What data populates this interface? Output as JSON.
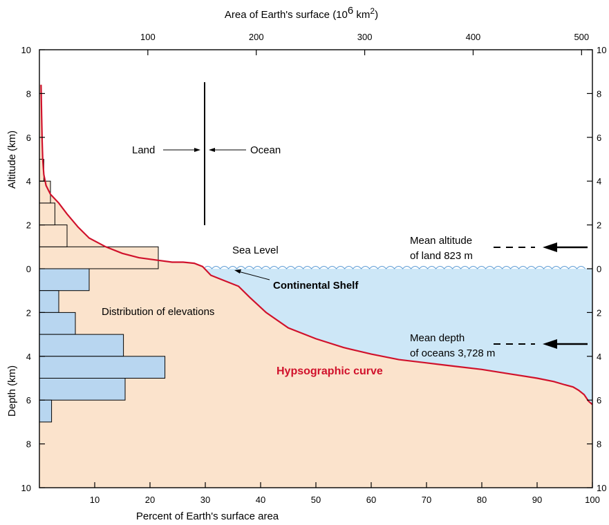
{
  "colors": {
    "land_fill": "#FBE3CC",
    "ocean_fill": "#CDE7F7",
    "land_bar": "#FBE3CC",
    "ocean_bar": "#B8D6F0",
    "curve": "#D0112B",
    "waves": "#5B9BD5"
  },
  "chart_data": {
    "type": "area",
    "xlabel": "Percent of Earth's surface area",
    "x2label_prefix": "Area of Earth's surface (10",
    "x2label_exp": "6",
    "x2label_unit": " km",
    "x2label_unit_exp": "2",
    "x2label_suffix": ")",
    "ylabel_upper": "Altitude (km)",
    "ylabel_lower": "Depth (km)",
    "xlim": [
      0,
      100
    ],
    "ylim": [
      -10,
      10
    ],
    "x_ticks": [
      10,
      20,
      30,
      40,
      50,
      60,
      70,
      80,
      90,
      100
    ],
    "x2_ticks": [
      100,
      200,
      300,
      400,
      500
    ],
    "x2_ticks_value_per_percent_unit": 5.1,
    "y_ticks": [
      {
        "value": 10,
        "label": "10"
      },
      {
        "value": 8,
        "label": "8"
      },
      {
        "value": 6,
        "label": "6"
      },
      {
        "value": 4,
        "label": "4"
      },
      {
        "value": 2,
        "label": "2"
      },
      {
        "value": 0,
        "label": "0"
      },
      {
        "value": -2,
        "label": "2"
      },
      {
        "value": -4,
        "label": "4"
      },
      {
        "value": -6,
        "label": "6"
      },
      {
        "value": -8,
        "label": "8"
      },
      {
        "value": -10,
        "label": "10"
      }
    ],
    "hypsographic_curve": {
      "name": "Hypsographic curve",
      "x": [
        0.3,
        0.4,
        0.5,
        0.6,
        0.8,
        1.2,
        2.0,
        3.5,
        5.0,
        7.0,
        9.0,
        12.0,
        15.0,
        18.0,
        21.0,
        24.0,
        26.0,
        28.0,
        29.5,
        31.0,
        33.0,
        36.0,
        38.0,
        41.0,
        45.0,
        50.0,
        55.0,
        60.0,
        65.0,
        70.0,
        75.0,
        80.0,
        85.0,
        90.0,
        93.0,
        95.0,
        96.5,
        97.5,
        98.5,
        99.3,
        100.0
      ],
      "y": [
        8.4,
        7.0,
        5.8,
        5.0,
        4.3,
        3.8,
        3.4,
        3.0,
        2.5,
        1.9,
        1.4,
        1.0,
        0.7,
        0.5,
        0.4,
        0.3,
        0.3,
        0.25,
        0.1,
        -0.3,
        -0.5,
        -0.8,
        -1.3,
        -2.0,
        -2.7,
        -3.2,
        -3.6,
        -3.9,
        -4.15,
        -4.3,
        -4.45,
        -4.6,
        -4.8,
        -5.0,
        -5.15,
        -5.3,
        -5.4,
        -5.55,
        -5.75,
        -6.05,
        -6.2
      ]
    },
    "land_distribution": {
      "name": "Distribution of elevations (land)",
      "bins": [
        [
          0,
          1
        ],
        [
          1,
          2
        ],
        [
          2,
          3
        ],
        [
          3,
          4
        ],
        [
          4,
          5
        ]
      ],
      "percent": [
        21.5,
        5.0,
        2.8,
        2.0,
        0.8
      ]
    },
    "ocean_distribution": {
      "name": "Distribution of elevations (ocean)",
      "bins": [
        [
          0,
          -1
        ],
        [
          -1,
          -2
        ],
        [
          -2,
          -3
        ],
        [
          -3,
          -4
        ],
        [
          -4,
          -5
        ],
        [
          -5,
          -6
        ],
        [
          -6,
          -7
        ]
      ],
      "percent": [
        9.0,
        3.5,
        6.5,
        15.2,
        22.7,
        15.5,
        2.2
      ]
    },
    "sea_level_percent": 29.2,
    "mean_altitude_land_km": 0.823,
    "mean_depth_ocean_km": -3.728
  },
  "annotations": {
    "land": "Land",
    "ocean": "Ocean",
    "sea_level": "Sea Level",
    "continental_shelf": "Continental Shelf",
    "distribution": "Distribution of elevations",
    "mean_altitude_line1": "Mean altitude",
    "mean_altitude_line2": "of land 823 m",
    "mean_depth_line1": "Mean depth",
    "mean_depth_line2": "of oceans 3,728 m",
    "curve_label": "Hypsographic curve"
  }
}
